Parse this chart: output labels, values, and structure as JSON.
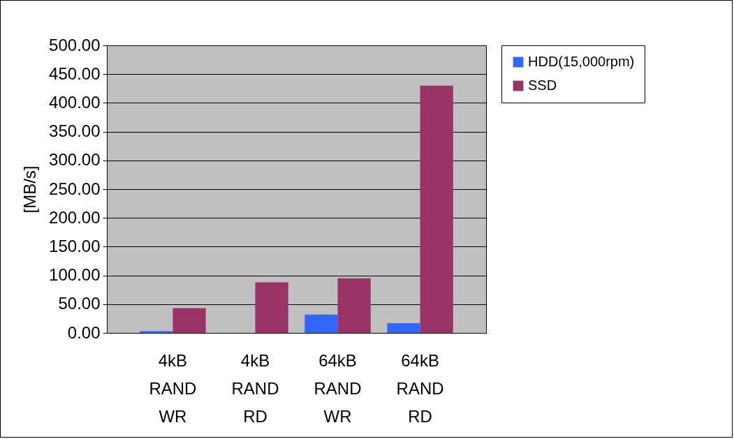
{
  "chart_data": {
    "type": "bar",
    "ylabel": "[MB/s]",
    "categories": [
      "4kB RAND WR",
      "4kB RAND RD",
      "64kB RAND WR",
      "64kB RAND RD"
    ],
    "series": [
      {
        "name": "HDD(15,000rpm)",
        "color": "#3366ff",
        "values": [
          3,
          null,
          32,
          17
        ]
      },
      {
        "name": "SSD",
        "color": "#993366",
        "values": [
          43,
          88,
          95,
          430
        ]
      }
    ],
    "ylim": [
      0,
      500
    ],
    "yticks": [
      {
        "value": 0,
        "label": "0.00"
      },
      {
        "value": 50,
        "label": "50.00"
      },
      {
        "value": 100,
        "label": "100.00"
      },
      {
        "value": 150,
        "label": "150.00"
      },
      {
        "value": 200,
        "label": "200.00"
      },
      {
        "value": 250,
        "label": "250.00"
      },
      {
        "value": 300,
        "label": "300.00"
      },
      {
        "value": 350,
        "label": "350.00"
      },
      {
        "value": 400,
        "label": "400.00"
      },
      {
        "value": 450,
        "label": "450.00"
      },
      {
        "value": 500,
        "label": "500.00"
      }
    ],
    "grid": "y",
    "legend": "right"
  }
}
